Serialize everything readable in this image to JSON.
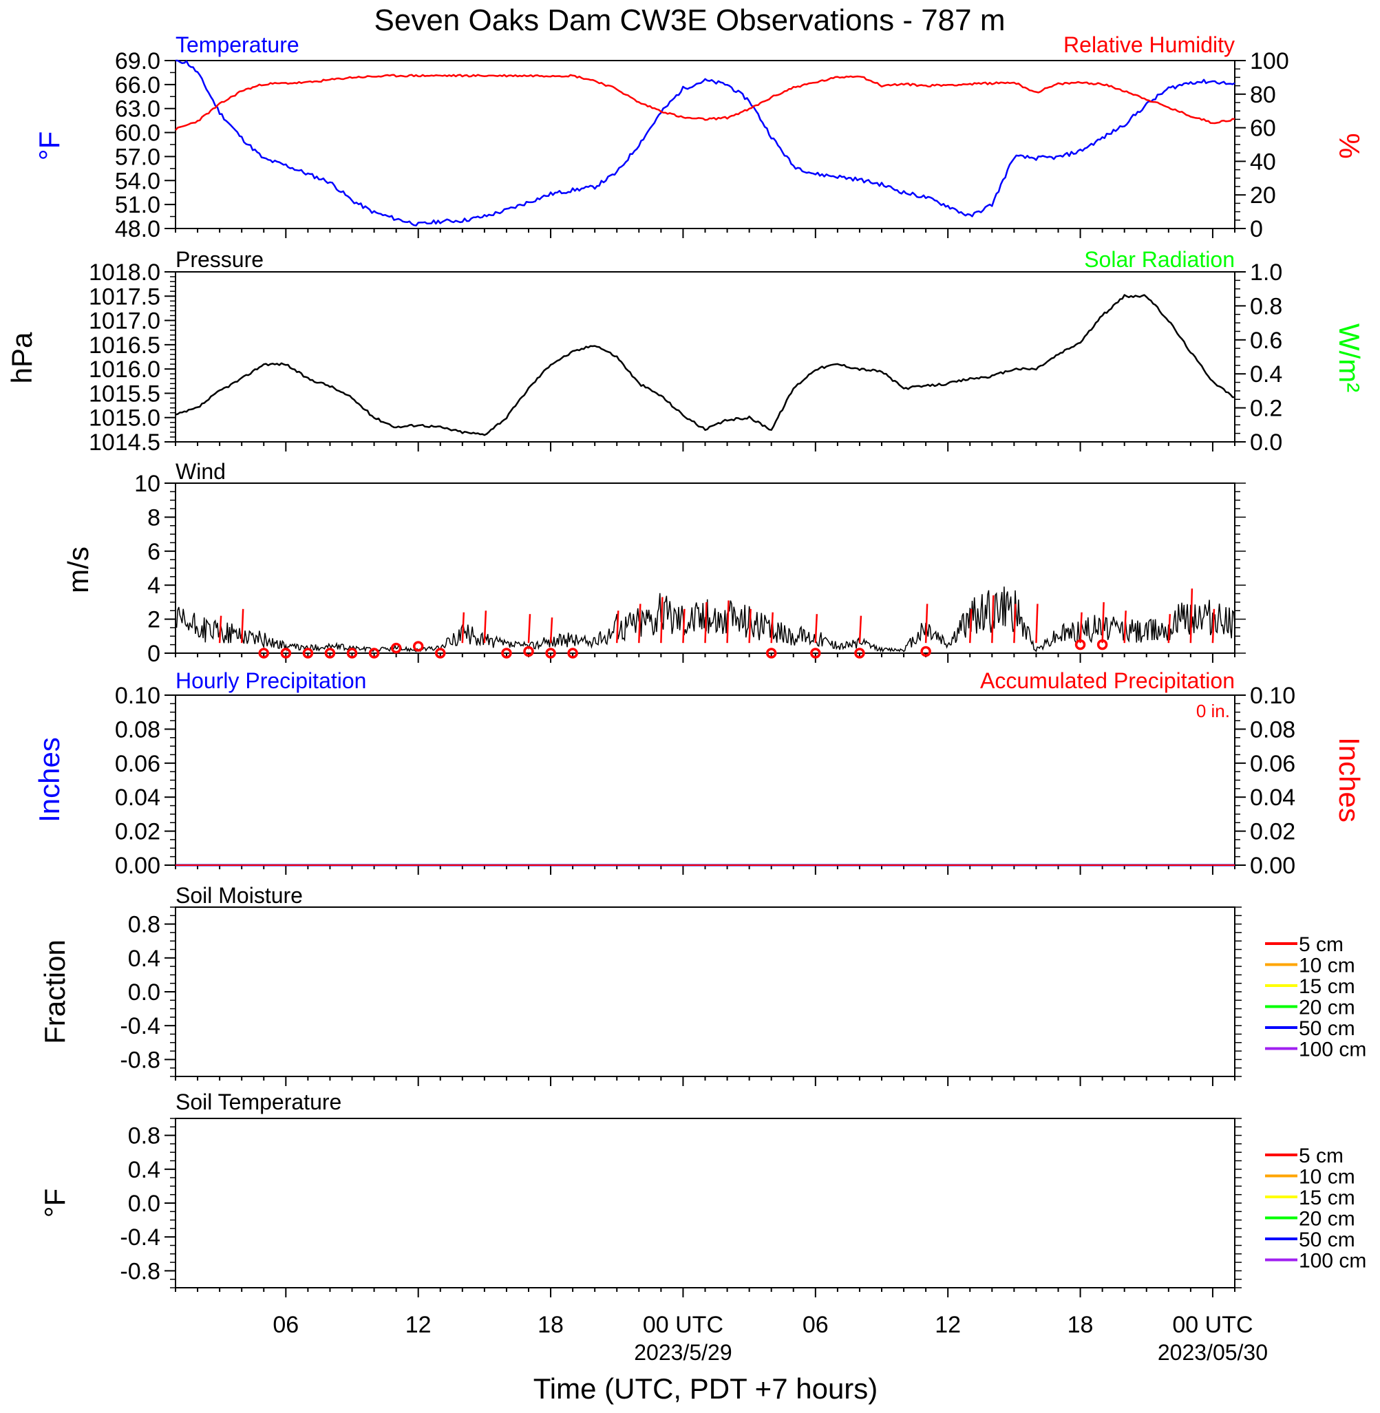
{
  "figure": {
    "title": "Seven Oaks Dam CW3E Observations - 787 m",
    "xlabel": "Time (UTC, PDT +7 hours)",
    "x_ticks": [
      "06",
      "12",
      "18",
      "00 UTC",
      "06",
      "12",
      "18",
      "00 UTC"
    ],
    "x_dates": [
      "2023/5/29",
      "2023/05/30"
    ],
    "colors": {
      "blue": "#0000ff",
      "red": "#ff0000",
      "green": "#00ff00",
      "black": "#000000"
    }
  },
  "panels": {
    "temp": {
      "left_title": "Temperature",
      "right_title": "Relative Humidity",
      "left_label": "°F",
      "right_label": "%",
      "left_ticks": [
        "69.0",
        "66.0",
        "63.0",
        "60.0",
        "57.0",
        "54.0",
        "51.0",
        "48.0"
      ],
      "right_ticks": [
        "100",
        "80",
        "60",
        "40",
        "20",
        "0"
      ]
    },
    "pres": {
      "left_title": "Pressure",
      "right_title": "Solar Radiation",
      "left_label": "hPa",
      "right_label": "W/m²",
      "left_ticks": [
        "1018.0",
        "1017.5",
        "1017.0",
        "1016.5",
        "1016.0",
        "1015.5",
        "1015.0",
        "1014.5"
      ],
      "right_ticks": [
        "1.0",
        "0.8",
        "0.6",
        "0.4",
        "0.2",
        "0.0"
      ]
    },
    "wind": {
      "left_title": "Wind",
      "left_label": "m/s",
      "left_ticks": [
        "10",
        "8",
        "6",
        "4",
        "2",
        "0"
      ]
    },
    "precip": {
      "left_title": "Hourly Precipitation",
      "right_title": "Accumulated Precipitation",
      "left_label": "Inches",
      "right_label": "Inches",
      "total": "0 in.",
      "left_ticks": [
        "0.10",
        "0.08",
        "0.06",
        "0.04",
        "0.02",
        "0.00"
      ],
      "right_ticks": [
        "0.10",
        "0.08",
        "0.06",
        "0.04",
        "0.02",
        "0.00"
      ]
    },
    "soilm": {
      "left_title": "Soil Moisture",
      "left_label": "Fraction",
      "left_ticks": [
        "0.8",
        "0.4",
        "0.0",
        "-0.4",
        "-0.8"
      ]
    },
    "soilt": {
      "left_title": "Soil Temperature",
      "left_label": "°F",
      "left_ticks": [
        "0.8",
        "0.4",
        "0.0",
        "-0.4",
        "-0.8"
      ]
    }
  },
  "legend": [
    {
      "label": "5 cm",
      "color": "#ff0000"
    },
    {
      "label": "10 cm",
      "color": "#ffa500"
    },
    {
      "label": "15 cm",
      "color": "#ffff00"
    },
    {
      "label": "20 cm",
      "color": "#00ff00"
    },
    {
      "label": "50 cm",
      "color": "#0000ff"
    },
    {
      "label": "100 cm",
      "color": "#a020f0"
    }
  ],
  "chart_data": [
    {
      "type": "line",
      "title": "Temperature",
      "xlabel": "Time (UTC, PDT +7 hours)",
      "ylabel": "°F",
      "x_unit": "hours since 2023-05-28 01 UTC",
      "ylim": [
        48,
        69
      ],
      "x": [
        0,
        0.5,
        1,
        1.5,
        2,
        3,
        4,
        5,
        6,
        7,
        8,
        9,
        10,
        11,
        12,
        13,
        14,
        15,
        16,
        17,
        18,
        19,
        20,
        21,
        22,
        23,
        24,
        25,
        26,
        27,
        28,
        29,
        30,
        31,
        32,
        33,
        34,
        35,
        36,
        37,
        38,
        39,
        40,
        41,
        42,
        43,
        44,
        45,
        46,
        47,
        48
      ],
      "series": [
        {
          "name": "Temperature",
          "values": [
            69,
            68.8,
            67.5,
            65,
            62.5,
            59.3,
            56.7,
            55.9,
            54.8,
            53.8,
            51.5,
            50.0,
            49.2,
            48.5,
            48.9,
            49.0,
            49.5,
            50.3,
            51.3,
            52.3,
            52.8,
            53.2,
            55.0,
            58.5,
            62.5,
            65.5,
            66.5,
            66.0,
            64.0,
            59.5,
            55.8,
            54.8,
            54.5,
            54.1,
            53.5,
            52.5,
            51.9,
            50.8,
            49.5,
            51.0,
            57.0,
            56.8,
            56.9,
            57.7,
            59.3,
            61.0,
            63.5,
            65.5,
            66.3,
            66.4,
            66.0
          ]
        }
      ]
    },
    {
      "type": "line",
      "title": "Relative Humidity",
      "ylabel": "%",
      "x_unit": "hours since 2023-05-28 01 UTC",
      "ylim": [
        0,
        100
      ],
      "x": [
        0,
        1,
        2,
        3,
        4,
        6,
        8,
        10,
        12,
        14,
        16,
        18,
        19,
        20,
        21,
        22,
        23,
        24,
        25,
        26,
        27,
        28,
        29,
        30,
        31,
        32,
        33,
        34,
        36,
        38,
        38.5,
        39,
        40,
        41,
        42,
        43,
        44,
        45,
        46,
        47,
        48
      ],
      "series": [
        {
          "name": "Relative Humidity",
          "values": [
            59,
            64,
            74,
            82,
            86,
            87,
            90,
            91,
            91,
            91,
            91,
            91,
            88,
            83,
            75,
            70,
            66,
            65,
            66,
            71,
            78,
            84,
            87,
            90,
            91,
            85,
            86,
            85,
            86,
            87,
            84,
            81,
            86,
            87,
            86,
            82,
            77,
            72,
            67,
            63,
            65
          ]
        }
      ]
    },
    {
      "type": "line",
      "title": "Pressure",
      "ylabel": "hPa",
      "x_unit": "hours since 2023-05-28 01 UTC",
      "ylim": [
        1014.5,
        1018.0
      ],
      "x": [
        0,
        1,
        2,
        3,
        4,
        5,
        6,
        7,
        8,
        9,
        10,
        11,
        12,
        13,
        14,
        15,
        16,
        17,
        18,
        19,
        20,
        21,
        22,
        23,
        24,
        25,
        26,
        27,
        28,
        29,
        30,
        31,
        32,
        33,
        34,
        35,
        36,
        37,
        38,
        39,
        40,
        41,
        42,
        43,
        44,
        45,
        46,
        47,
        48
      ],
      "series": [
        {
          "name": "Pressure",
          "values": [
            1015.05,
            1015.2,
            1015.55,
            1015.8,
            1016.1,
            1016.1,
            1015.8,
            1015.65,
            1015.4,
            1015.0,
            1014.8,
            1014.85,
            1014.8,
            1014.7,
            1014.65,
            1015.0,
            1015.6,
            1016.1,
            1016.35,
            1016.5,
            1016.25,
            1015.7,
            1015.45,
            1015.05,
            1014.75,
            1014.95,
            1015.0,
            1014.75,
            1015.6,
            1016.0,
            1016.1,
            1016.0,
            1015.95,
            1015.6,
            1015.65,
            1015.7,
            1015.8,
            1015.85,
            1016.0,
            1016.0,
            1016.3,
            1016.55,
            1017.1,
            1017.5,
            1017.5,
            1017.0,
            1016.35,
            1015.75,
            1015.4
          ]
        }
      ]
    },
    {
      "type": "line",
      "title": "Wind",
      "ylabel": "m/s",
      "x_unit": "hours since 2023-05-28 01 UTC",
      "ylim": [
        0,
        10
      ],
      "x": [
        0,
        1,
        2,
        3,
        4,
        5,
        6,
        7,
        8,
        9,
        10,
        11,
        12,
        13,
        14,
        15,
        16,
        17,
        18,
        19,
        20,
        21,
        22,
        23,
        24,
        25,
        26,
        27,
        28,
        29,
        30,
        31,
        32,
        33,
        34,
        35,
        36,
        37,
        38,
        39,
        40,
        41,
        42,
        43,
        44,
        45,
        46,
        47,
        48
      ],
      "series": [
        {
          "name": "Wind speed",
          "values": [
            1.8,
            1.5,
            1.2,
            1.1,
            0.8,
            0.4,
            0.3,
            0.4,
            0.3,
            0.2,
            0.3,
            0.2,
            0.3,
            1.2,
            0.8,
            0.5,
            0.4,
            0.7,
            0.8,
            0.6,
            1.5,
            1.9,
            2.3,
            2.1,
            2.1,
            2.0,
            2.0,
            1.3,
            1.0,
            1.0,
            0.4,
            0.6,
            0.2,
            0.2,
            1.5,
            0.5,
            2.0,
            2.6,
            2.5,
            0.2,
            1.1,
            1.4,
            1.5,
            1.4,
            1.3,
            1.6,
            2.2,
            2.0,
            1.9
          ]
        }
      ],
      "barb_times": [
        2,
        3,
        4,
        5,
        6,
        7,
        8,
        9,
        10,
        11,
        12,
        13,
        14,
        15,
        16,
        17,
        18,
        19,
        20,
        21,
        22,
        23,
        24,
        25,
        26,
        27,
        28,
        29,
        30,
        31,
        32,
        33,
        34,
        35,
        36,
        37,
        38,
        39,
        40,
        41,
        42,
        43,
        44,
        45,
        46,
        47
      ],
      "barb_lengths": [
        1.6,
        2.0,
        0,
        0,
        0,
        0,
        0,
        0,
        0,
        0,
        0,
        1.8,
        1.9,
        0,
        1.7,
        1.5,
        0,
        0,
        1.9,
        2.3,
        2.7,
        2.0,
        2.4,
        2.5,
        2.0,
        1.8,
        0,
        1.7,
        0,
        1.6,
        0,
        0,
        2.3,
        0,
        2.0,
        2.8,
        2.3,
        2.3,
        0,
        1.8,
        2.4,
        1.9,
        0,
        1.7,
        3.2,
        2.0
      ],
      "calm_times": [
        4,
        5,
        6,
        7,
        8,
        9,
        10,
        11,
        12,
        15,
        16,
        17,
        18,
        27,
        29,
        31,
        34,
        41,
        42
      ],
      "calm_values": [
        0,
        0,
        0,
        0,
        0,
        0,
        0.3,
        0.4,
        0,
        0,
        0.1,
        0,
        0,
        0,
        0,
        0,
        0.1,
        0.5,
        0.5
      ]
    },
    {
      "type": "line",
      "title": "Hourly Precipitation",
      "ylabel": "Inches",
      "ylim": [
        0,
        0.1
      ],
      "x": [
        0,
        48
      ],
      "series": [
        {
          "name": "Hourly Precipitation",
          "values": [
            0,
            0
          ]
        },
        {
          "name": "Accumulated Precipitation",
          "values": [
            0,
            0
          ]
        }
      ]
    },
    {
      "type": "line",
      "title": "Soil Moisture",
      "ylabel": "Fraction",
      "ylim": [
        -1,
        1
      ],
      "series": [
        {
          "name": "5 cm",
          "values": []
        },
        {
          "name": "10 cm",
          "values": []
        },
        {
          "name": "15 cm",
          "values": []
        },
        {
          "name": "20 cm",
          "values": []
        },
        {
          "name": "50 cm",
          "values": []
        },
        {
          "name": "100 cm",
          "values": []
        }
      ]
    },
    {
      "type": "line",
      "title": "Soil Temperature",
      "ylabel": "°F",
      "ylim": [
        -1,
        1
      ],
      "series": [
        {
          "name": "5 cm",
          "values": []
        },
        {
          "name": "10 cm",
          "values": []
        },
        {
          "name": "15 cm",
          "values": []
        },
        {
          "name": "20 cm",
          "values": []
        },
        {
          "name": "50 cm",
          "values": []
        },
        {
          "name": "100 cm",
          "values": []
        }
      ]
    }
  ]
}
